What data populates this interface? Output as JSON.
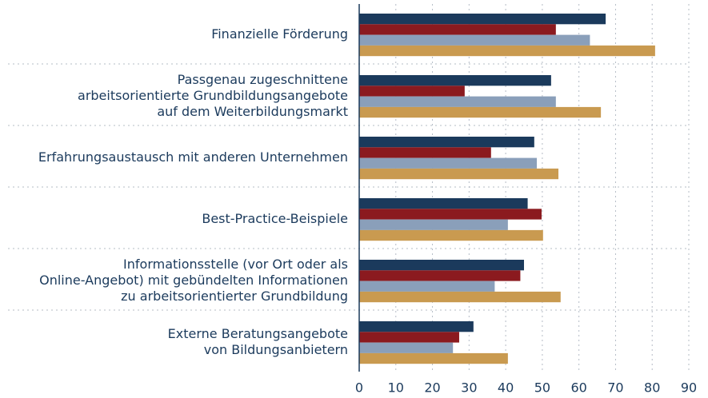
{
  "chart_data": {
    "type": "hbar",
    "categories": [
      [
        "Finanzielle Förderung"
      ],
      [
        "Passgenau zugeschnittene",
        "arbeitsorientierte Grundbildungsangebote",
        "auf dem Weiterbildungsmarkt"
      ],
      [
        "Erfahrungsaustausch mit anderen Unternehmen"
      ],
      [
        "Best-Practice-Beispiele"
      ],
      [
        "Informationsstelle (vor Ort oder als",
        "Online-Angebot) mit gebündelten Informationen",
        "zu arbeitsorientierter Grundbildung"
      ],
      [
        "Externe Beratungsangebote",
        "von Bildungsanbietern"
      ]
    ],
    "series": [
      {
        "color": "#1b3a5c",
        "values": [
          67.3,
          52.4,
          47.8,
          46,
          45,
          31.2
        ]
      },
      {
        "color": "#8b1a1f",
        "values": [
          53.7,
          28.8,
          36,
          49.8,
          44,
          27.3
        ]
      },
      {
        "color": "#8a9fba",
        "values": [
          63,
          53.7,
          48.5,
          40.6,
          37,
          25.6
        ]
      },
      {
        "color": "#c99a50",
        "values": [
          80.8,
          66,
          54.4,
          50.2,
          55,
          40.6
        ]
      }
    ],
    "xlim": [
      0,
      90
    ],
    "xticks": [
      0,
      10,
      20,
      30,
      40,
      50,
      60,
      70,
      80,
      90
    ],
    "grid": true
  }
}
